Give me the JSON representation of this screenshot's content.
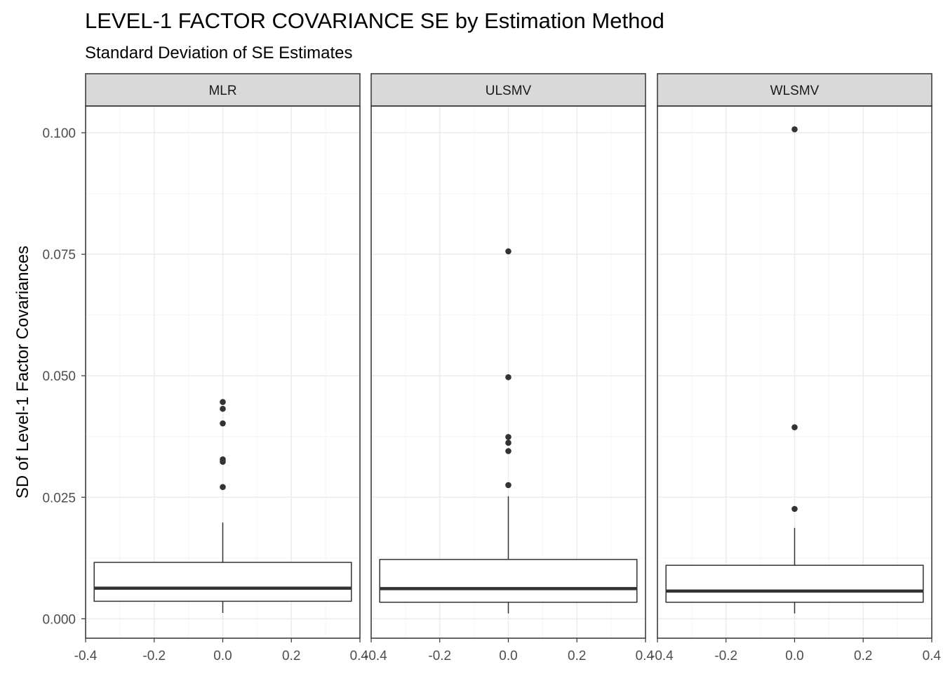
{
  "chart_data": {
    "type": "box",
    "title": "LEVEL-1 FACTOR COVARIANCE SE by Estimation Method",
    "subtitle": "Standard Deviation of SE Estimates",
    "xlabel": "",
    "ylabel": "SD of Level-1 Factor Covariances",
    "xlim": [
      -0.4,
      0.4
    ],
    "ylim": [
      -0.004,
      0.1055
    ],
    "x_ticks": [
      -0.4,
      -0.2,
      0.0,
      0.2,
      0.4
    ],
    "x_tick_labels": [
      "-0.4",
      "-0.2",
      "0.0",
      "0.2",
      "0.4"
    ],
    "y_ticks": [
      0.0,
      0.025,
      0.05,
      0.075,
      0.1
    ],
    "y_tick_labels": [
      "0.000",
      "0.025",
      "0.050",
      "0.075",
      "0.100"
    ],
    "grid": true,
    "theme": {
      "panel_border": "#333333",
      "grid_major": "#ebebeb",
      "grid_minor": "#f5f5f5",
      "strip_fill": "#d9d9d9",
      "box_line": "#333333",
      "outlier": "#333333"
    },
    "panels": [
      {
        "strip": "MLR",
        "box": {
          "min": 0.0012,
          "q1": 0.0036,
          "median": 0.0063,
          "q3": 0.0116,
          "max": 0.0198
        },
        "outliers": [
          0.0446,
          0.0432,
          0.0402,
          0.0328,
          0.0323,
          0.0271
        ]
      },
      {
        "strip": "ULSMV",
        "box": {
          "min": 0.0011,
          "q1": 0.0034,
          "median": 0.0062,
          "q3": 0.0122,
          "max": 0.0252
        },
        "outliers": [
          0.0756,
          0.0497,
          0.0374,
          0.0362,
          0.0345,
          0.0275
        ]
      },
      {
        "strip": "WLSMV",
        "box": {
          "min": 0.0011,
          "q1": 0.0034,
          "median": 0.0057,
          "q3": 0.011,
          "max": 0.0187
        },
        "outliers": [
          0.1007,
          0.0394,
          0.0226
        ]
      }
    ]
  }
}
